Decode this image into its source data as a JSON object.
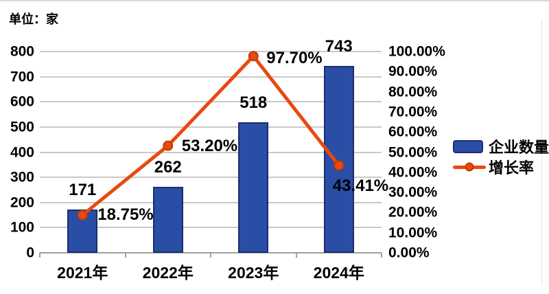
{
  "unit_label": "单位：家",
  "chart_data": {
    "type": "bar",
    "subtype": "bar+line combo",
    "categories": [
      "2021年",
      "2022年",
      "2023年",
      "2024年"
    ],
    "series": [
      {
        "name": "企业数量",
        "type": "bar",
        "axis": "left",
        "values": [
          171,
          262,
          518,
          743
        ],
        "labels": [
          "171",
          "262",
          "518",
          "743"
        ],
        "color": "#2a4da5",
        "border_color": "#1a2d6b"
      },
      {
        "name": "增长率",
        "type": "line",
        "axis": "right",
        "values": [
          18.75,
          53.2,
          97.7,
          43.41
        ],
        "labels": [
          "18.75%",
          "53.20%",
          "97.70%",
          "43.41%"
        ],
        "color": "#e8490f",
        "marker_border": "#c03b06",
        "label_offsets": [
          [
            22,
            0
          ],
          [
            20,
            1
          ],
          [
            19,
            3
          ],
          [
            -9,
            30
          ]
        ]
      }
    ],
    "left_axis": {
      "min": 0,
      "max": 800,
      "step": 100,
      "ticks": [
        "800",
        "700",
        "600",
        "500",
        "400",
        "300",
        "200",
        "100",
        "0"
      ]
    },
    "right_axis": {
      "min": 0,
      "max": 100,
      "step": 10,
      "ticks": [
        "100.00%",
        "90.00%",
        "80.00%",
        "70.00%",
        "60.00%",
        "50.00%",
        "40.00%",
        "30.00%",
        "20.00%",
        "10.00%",
        "0.00%"
      ]
    },
    "grid": true,
    "legend_position": "right",
    "title": ""
  },
  "colors": {
    "bar_fill": "#2a4da5",
    "bar_border": "#1a2d6b",
    "line": "#e8490f",
    "marker_border": "#c03b06",
    "gridline": "#c9c9c9",
    "axis": "#9f9f9f",
    "text": "#000000"
  }
}
